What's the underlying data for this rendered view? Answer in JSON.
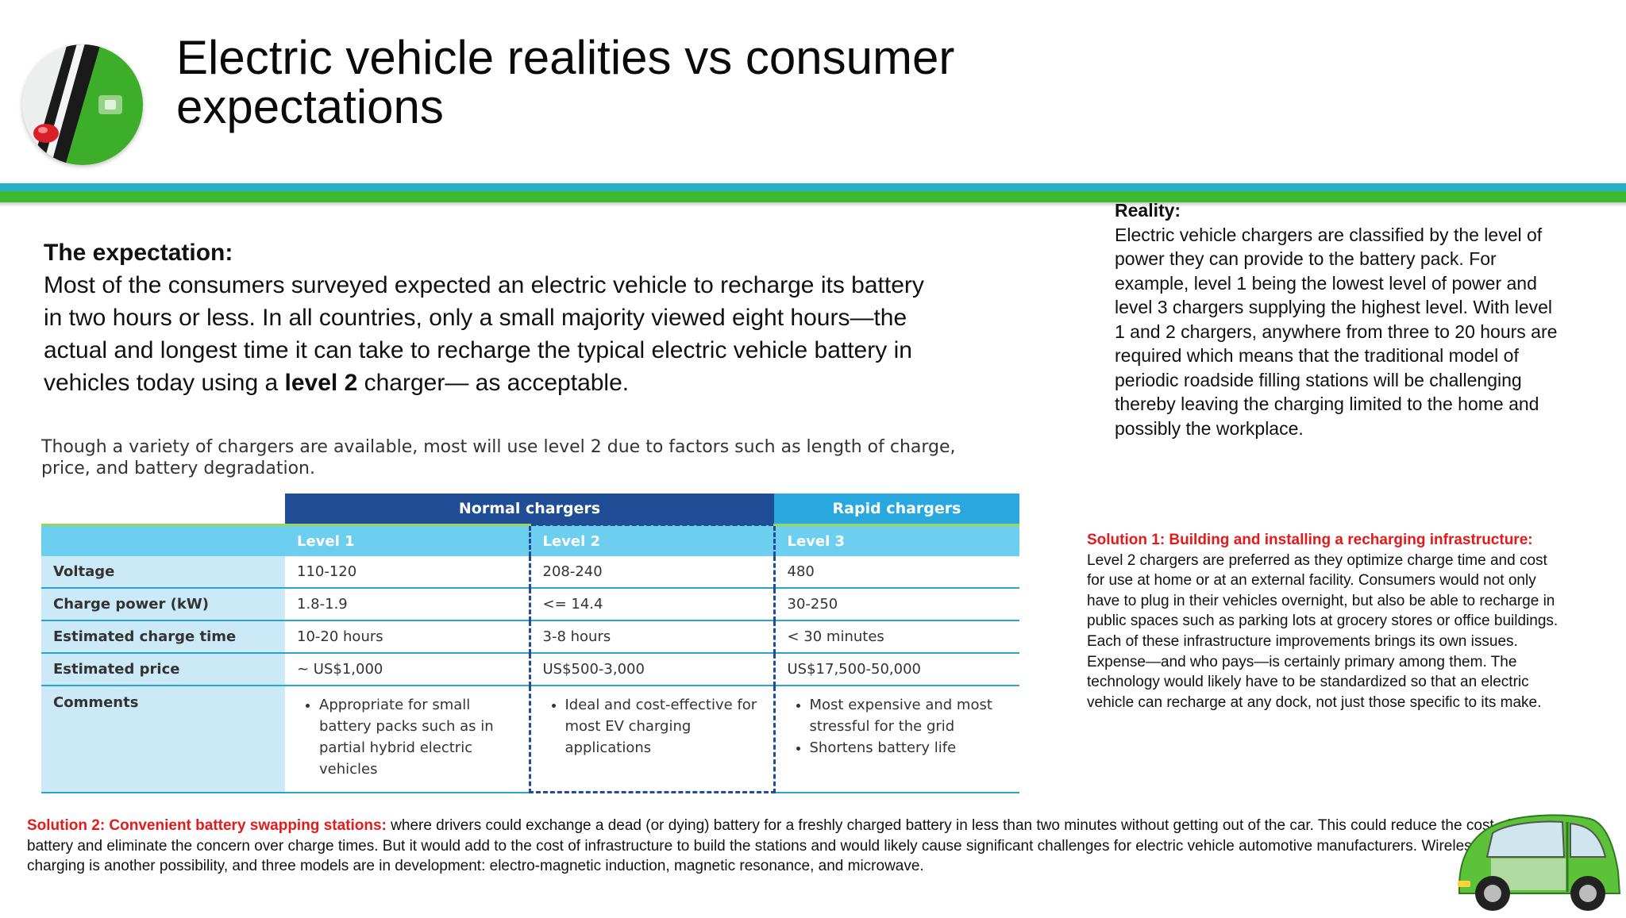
{
  "header": {
    "title_line1": "Electric vehicle realities vs consumer",
    "title_line2": "expectations"
  },
  "expectation": {
    "heading": "The expectation:",
    "text_before": "Most of the consumers surveyed expected an electric vehicle to recharge its battery in two hours or less. In all countries, only a small majority viewed eight hours—the actual and longest time it can take to recharge the typical electric vehicle battery in vehicles today using a ",
    "bold": "level 2",
    "text_after": " charger— as acceptable."
  },
  "caption": "Though a variety of chargers are available, most will use level 2 due to factors such as length of charge, price, and battery degradation.",
  "table": {
    "group_normal": "Normal chargers",
    "group_rapid": "Rapid chargers",
    "levels": [
      "Level 1",
      "Level 2",
      "Level 3"
    ],
    "rows": [
      {
        "label": "Voltage",
        "values": [
          "110-120",
          "208-240",
          "480"
        ]
      },
      {
        "label": "Charge power (kW)",
        "values": [
          "1.8-1.9",
          "<= 14.4",
          "30-250"
        ]
      },
      {
        "label": "Estimated charge time",
        "values": [
          "10-20 hours",
          "3-8 hours",
          "< 30 minutes"
        ]
      },
      {
        "label": "Estimated price",
        "values": [
          "~ US$1,000",
          "US$500-3,000",
          "US$17,500-50,000"
        ]
      }
    ],
    "comments_label": "Comments",
    "comments": [
      [
        "Appropriate for small battery packs such as in partial hybrid electric vehicles"
      ],
      [
        "Ideal and cost-effective for most EV charging applications"
      ],
      [
        "Most expensive and most stressful for the grid",
        "Shortens battery life"
      ]
    ]
  },
  "reality": {
    "heading": "Reality:",
    "text": "Electric vehicle chargers are classified by the level of power they can provide to the battery pack. For example, level 1 being the lowest level of power and level 3 chargers supplying the highest level. With level 1 and 2 chargers, anywhere from three to 20 hours are required which means that the traditional model of periodic roadside filling stations will be challenging thereby leaving the charging limited to the home and possibly the workplace."
  },
  "solution1": {
    "label": "Solution 1:  Building and installing a recharging infrastructure:",
    "text": " Level 2 chargers are preferred as they optimize charge time and cost for use at home or at an external facility. Consumers would not only have to plug in their vehicles overnight, but also be able to recharge in public spaces such as parking lots at grocery stores or office buildings. Each of these infrastructure improvements brings its own issues. Expense—and who pays—is certainly primary among them. The technology would likely have to be standardized so that an electric vehicle can recharge at any dock, not just those specific to its make."
  },
  "solution2": {
    "label": "Solution 2: Convenient battery swapping stations:",
    "text": " where drivers could exchange a dead (or dying) battery for a freshly charged battery in less than two minutes without getting out of the car. This could reduce the cost of the battery and eliminate the concern over charge times. But it would add to the cost of infrastructure to build the stations and would likely cause significant challenges for electric vehicle automotive manufacturers. Wireless inductive charging is another possibility, and three models are in development: electro-magnetic induction, magnetic resonance, and microwave."
  },
  "colors": {
    "band_teal": "#25b0c8",
    "band_green": "#3dba2f",
    "table_navy": "#1f4e96",
    "table_sky": "#29a8e0",
    "solution_red": "#e21a1a"
  },
  "icons": {
    "logo": "ev-charging-logo-icon",
    "car": "green-electric-car-icon"
  }
}
